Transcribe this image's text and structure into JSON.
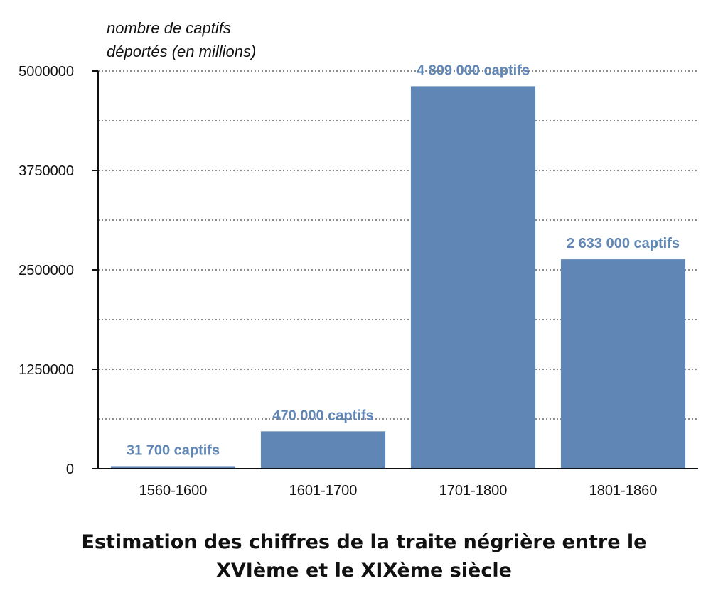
{
  "chart_data": {
    "type": "bar",
    "title_lines": [
      "Estimation des chiffres de la traite négrière entre le",
      "XVIème et le XIXème siècle"
    ],
    "ylabel_lines": [
      "nombre de captifs",
      "déportés (en millions)"
    ],
    "xlabel": "",
    "categories": [
      "1560-1600",
      "1601-1700",
      "1701-1800",
      "1801-1860"
    ],
    "values": [
      31700,
      470000,
      4809000,
      2633000
    ],
    "data_labels": [
      "31 700 captifs",
      "470 000 captifs",
      "4 809 000 captifs",
      "2 633 000 captifs"
    ],
    "ylim": [
      0,
      5000000
    ],
    "yticks": [
      0,
      1250000,
      2500000,
      3750000,
      5000000
    ],
    "ytick_labels": [
      "0",
      "1250000",
      "2500000",
      "3750000",
      "5000000"
    ],
    "grid": "dotted horizontal",
    "legend": "none",
    "bar_color": "#5f86b5",
    "label_color": "#5f86b5"
  }
}
